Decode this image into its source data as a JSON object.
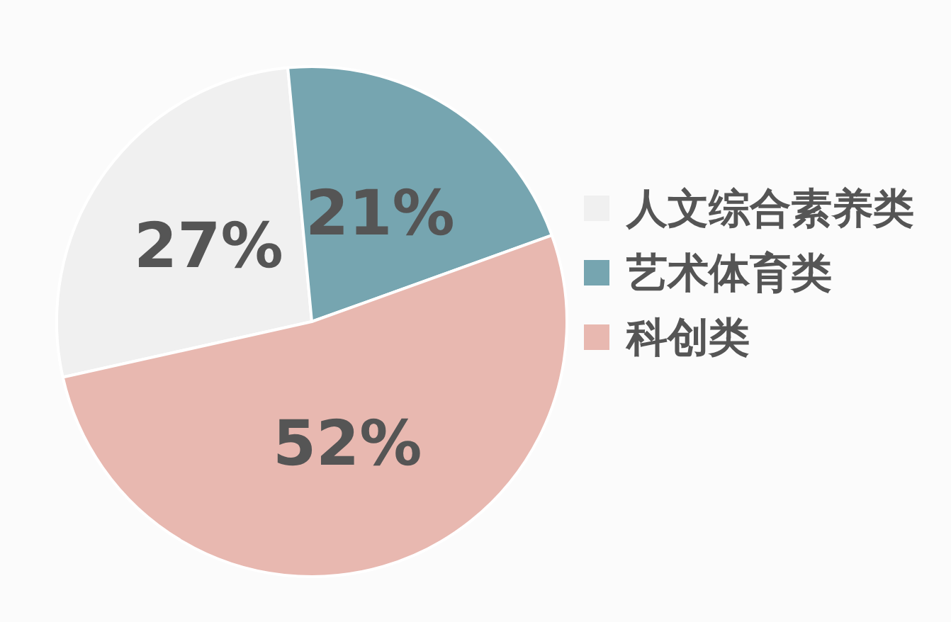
{
  "chart_data": {
    "type": "pie",
    "categories": [
      "人文综合素养类",
      "艺术体育类",
      "科创类"
    ],
    "values": [
      27,
      21,
      52
    ],
    "colors": [
      "#f0f0f0",
      "#76a5b0",
      "#e8b8b0"
    ],
    "value_labels": [
      "27%",
      "21%",
      "52%"
    ],
    "legend": "right"
  }
}
